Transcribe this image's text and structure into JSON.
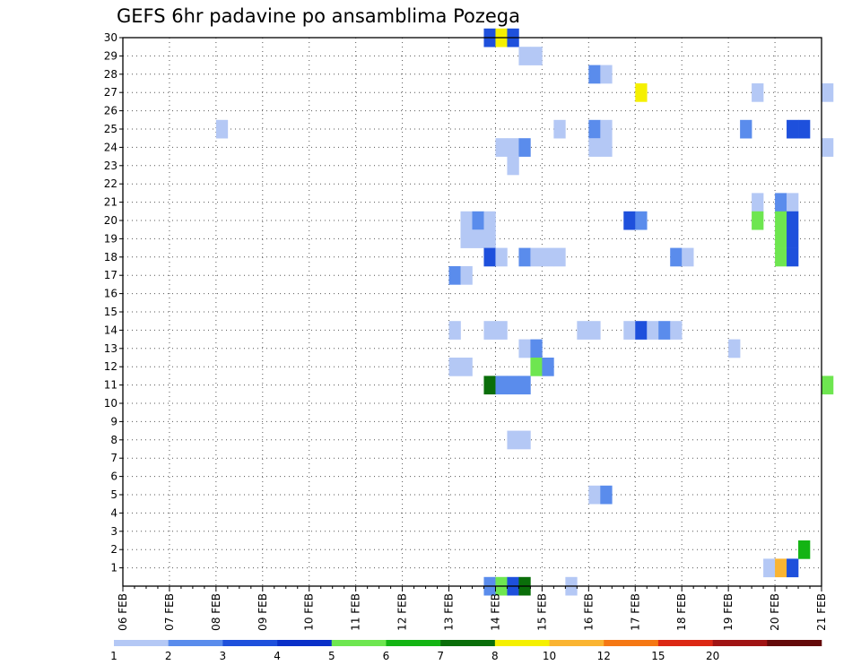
{
  "chart_data": {
    "type": "heatmap",
    "title": "GEFS 6hr padavine po ansamblima Pozega",
    "xlabel": "",
    "ylabel": "",
    "x_ticks": [
      "06 FEB",
      "07 FEB",
      "08 FEB",
      "09 FEB",
      "10 FEB",
      "11 FEB",
      "12 FEB",
      "13 FEB",
      "14 FEB",
      "15 FEB",
      "16 FEB",
      "17 FEB",
      "18 FEB",
      "19 FEB",
      "20 FEB",
      "21 FEB"
    ],
    "y_ticks": [
      "1",
      "2",
      "3",
      "4",
      "5",
      "6",
      "7",
      "8",
      "9",
      "10",
      "11",
      "12",
      "13",
      "14",
      "15",
      "16",
      "17",
      "18",
      "19",
      "20",
      "21",
      "22",
      "23",
      "24",
      "25",
      "26",
      "27",
      "28",
      "29",
      "30"
    ],
    "x_range": [
      "06 FEB 00Z",
      "21 FEB 00Z"
    ],
    "y_range": [
      0,
      30
    ],
    "grid": true,
    "legend_position": "bottom",
    "legend": {
      "labels": [
        "1",
        "2",
        "3",
        "4",
        "5",
        "6",
        "7",
        "8",
        "10",
        "12",
        "15",
        "20"
      ],
      "colors": [
        "#b4c8f5",
        "#5a8cec",
        "#1e50dc",
        "#0a30c8",
        "#6ee650",
        "#14b414",
        "#0a6e0a",
        "#f5f000",
        "#fab432",
        "#f57814",
        "#dc2814",
        "#a01414",
        "#640a0a"
      ]
    },
    "cells_note": "steps = 6-hour periods since 06 FEB 00Z; y = ensemble member (0 = control row); cat = legend color index",
    "cells": [
      {
        "step": 31,
        "y": 30,
        "cat": 2
      },
      {
        "step": 32,
        "y": 30,
        "cat": 7
      },
      {
        "step": 33,
        "y": 30,
        "cat": 2
      },
      {
        "step": 34,
        "y": 29,
        "cat": 0
      },
      {
        "step": 35,
        "y": 29,
        "cat": 0
      },
      {
        "step": 40,
        "y": 28,
        "cat": 1
      },
      {
        "step": 41,
        "y": 28,
        "cat": 0
      },
      {
        "step": 44,
        "y": 27,
        "cat": 7
      },
      {
        "step": 54,
        "y": 27,
        "cat": 0
      },
      {
        "step": 60,
        "y": 27,
        "cat": 0
      },
      {
        "step": 8,
        "y": 25,
        "cat": 0
      },
      {
        "step": 37,
        "y": 25,
        "cat": 0
      },
      {
        "step": 40,
        "y": 25,
        "cat": 1
      },
      {
        "step": 41,
        "y": 25,
        "cat": 0
      },
      {
        "step": 53,
        "y": 25,
        "cat": 1
      },
      {
        "step": 57,
        "y": 25,
        "cat": 2
      },
      {
        "step": 58,
        "y": 25,
        "cat": 2
      },
      {
        "step": 32,
        "y": 24,
        "cat": 0
      },
      {
        "step": 33,
        "y": 24,
        "cat": 0
      },
      {
        "step": 34,
        "y": 24,
        "cat": 1
      },
      {
        "step": 40,
        "y": 24,
        "cat": 0
      },
      {
        "step": 41,
        "y": 24,
        "cat": 0
      },
      {
        "step": 60,
        "y": 24,
        "cat": 0
      },
      {
        "step": 33,
        "y": 23,
        "cat": 0
      },
      {
        "step": 54,
        "y": 21,
        "cat": 0
      },
      {
        "step": 56,
        "y": 21,
        "cat": 1
      },
      {
        "step": 57,
        "y": 21,
        "cat": 0
      },
      {
        "step": 29,
        "y": 20,
        "cat": 0
      },
      {
        "step": 30,
        "y": 20,
        "cat": 1
      },
      {
        "step": 31,
        "y": 20,
        "cat": 0
      },
      {
        "step": 43,
        "y": 20,
        "cat": 2
      },
      {
        "step": 44,
        "y": 20,
        "cat": 1
      },
      {
        "step": 54,
        "y": 20,
        "cat": 4
      },
      {
        "step": 56,
        "y": 20,
        "cat": 4
      },
      {
        "step": 57,
        "y": 20,
        "cat": 2
      },
      {
        "step": 29,
        "y": 19,
        "cat": 0
      },
      {
        "step": 30,
        "y": 19,
        "cat": 0
      },
      {
        "step": 31,
        "y": 19,
        "cat": 0
      },
      {
        "step": 56,
        "y": 19,
        "cat": 4
      },
      {
        "step": 57,
        "y": 19,
        "cat": 2
      },
      {
        "step": 31,
        "y": 18,
        "cat": 2
      },
      {
        "step": 32,
        "y": 18,
        "cat": 0
      },
      {
        "step": 34,
        "y": 18,
        "cat": 1
      },
      {
        "step": 35,
        "y": 18,
        "cat": 0
      },
      {
        "step": 36,
        "y": 18,
        "cat": 0
      },
      {
        "step": 37,
        "y": 18,
        "cat": 0
      },
      {
        "step": 47,
        "y": 18,
        "cat": 1
      },
      {
        "step": 48,
        "y": 18,
        "cat": 0
      },
      {
        "step": 56,
        "y": 18,
        "cat": 4
      },
      {
        "step": 57,
        "y": 18,
        "cat": 2
      },
      {
        "step": 28,
        "y": 17,
        "cat": 1
      },
      {
        "step": 29,
        "y": 17,
        "cat": 0
      },
      {
        "step": 28,
        "y": 14,
        "cat": 0
      },
      {
        "step": 31,
        "y": 14,
        "cat": 0
      },
      {
        "step": 32,
        "y": 14,
        "cat": 0
      },
      {
        "step": 39,
        "y": 14,
        "cat": 0
      },
      {
        "step": 40,
        "y": 14,
        "cat": 0
      },
      {
        "step": 43,
        "y": 14,
        "cat": 0
      },
      {
        "step": 44,
        "y": 14,
        "cat": 2
      },
      {
        "step": 45,
        "y": 14,
        "cat": 0
      },
      {
        "step": 46,
        "y": 14,
        "cat": 1
      },
      {
        "step": 47,
        "y": 14,
        "cat": 0
      },
      {
        "step": 34,
        "y": 13,
        "cat": 0
      },
      {
        "step": 35,
        "y": 13,
        "cat": 1
      },
      {
        "step": 52,
        "y": 13,
        "cat": 0
      },
      {
        "step": 28,
        "y": 12,
        "cat": 0
      },
      {
        "step": 29,
        "y": 12,
        "cat": 0
      },
      {
        "step": 35,
        "y": 12,
        "cat": 4
      },
      {
        "step": 36,
        "y": 12,
        "cat": 1
      },
      {
        "step": 31,
        "y": 11,
        "cat": 6
      },
      {
        "step": 32,
        "y": 11,
        "cat": 1
      },
      {
        "step": 33,
        "y": 11,
        "cat": 1
      },
      {
        "step": 34,
        "y": 11,
        "cat": 1
      },
      {
        "step": 60,
        "y": 11,
        "cat": 4
      },
      {
        "step": 33,
        "y": 8,
        "cat": 0
      },
      {
        "step": 34,
        "y": 8,
        "cat": 0
      },
      {
        "step": 40,
        "y": 5,
        "cat": 0
      },
      {
        "step": 41,
        "y": 5,
        "cat": 1
      },
      {
        "step": 58,
        "y": 2,
        "cat": 5
      },
      {
        "step": 55,
        "y": 1,
        "cat": 0
      },
      {
        "step": 56,
        "y": 1,
        "cat": 8
      },
      {
        "step": 57,
        "y": 1,
        "cat": 2
      },
      {
        "step": 31,
        "y": 0,
        "cat": 1
      },
      {
        "step": 32,
        "y": 0,
        "cat": 4
      },
      {
        "step": 33,
        "y": 0,
        "cat": 2
      },
      {
        "step": 34,
        "y": 0,
        "cat": 6
      },
      {
        "step": 38,
        "y": 0,
        "cat": 0
      }
    ]
  }
}
